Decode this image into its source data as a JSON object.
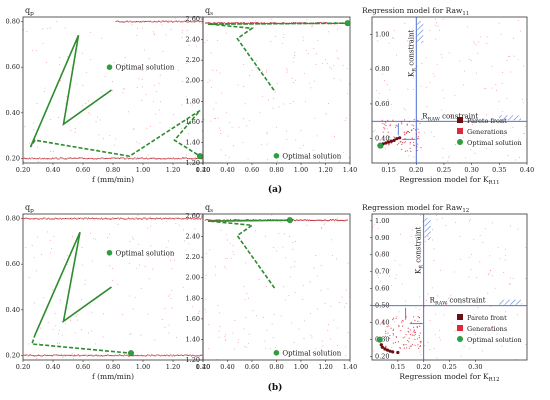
{
  "figure": {
    "captions": [
      "(a)",
      "(b)"
    ]
  },
  "colors": {
    "generations": "#e0283c",
    "pareto": "#6b0f12",
    "optimal": "#2e9e3e",
    "path": "#2e8b2e",
    "constraint": "#3a5fcd",
    "frame": "#333333",
    "hatch": "#5a7fd8",
    "ridge": "#c0303a"
  },
  "chart_data": [
    {
      "type": "scatter",
      "id": "a-qp",
      "ylabel": "q",
      "ylabel_sub": "p",
      "xlabel": "f (mm/min)",
      "xlim": [
        0.2,
        1.4
      ],
      "ylim": [
        0.18,
        0.82
      ],
      "xticks": [
        "0.20",
        "0.40",
        "0.60",
        "0.80",
        "1.00",
        "1.20",
        "1.40"
      ],
      "yticks": [
        "0.20",
        "0.40",
        "0.60",
        "0.80"
      ],
      "ridges": [
        {
          "y": 0.8,
          "x0": 0.82,
          "x1": 1.4
        },
        {
          "y": 0.2,
          "x0": 0.2,
          "x1": 1.4
        }
      ],
      "path": [
        [
          0.25,
          0.25
        ],
        [
          0.57,
          0.74
        ],
        [
          0.47,
          0.35
        ],
        [
          0.79,
          0.5
        ],
        [
          0.47,
          0.35
        ],
        [
          0.57,
          0.74
        ],
        [
          0.25,
          0.25
        ],
        [
          0.28,
          0.28
        ],
        [
          0.91,
          0.21
        ],
        [
          1.38,
          0.41
        ],
        [
          1.21,
          0.28
        ],
        [
          1.38,
          0.21
        ]
      ],
      "optimal": [
        1.38,
        0.21
      ],
      "annotations": [
        {
          "text": "Optimal solution",
          "x": 0.81,
          "y": 0.6
        }
      ]
    },
    {
      "type": "scatter",
      "id": "a-qs",
      "ylabel": "q",
      "ylabel_sub": "s",
      "xlim": [
        0.2,
        1.4
      ],
      "ylim": [
        1.2,
        2.62
      ],
      "xticks": [
        "0.20",
        "0.40",
        "0.60",
        "0.80",
        "1.00",
        "1.20",
        "1.40"
      ],
      "yticks": [
        "1.20",
        "1.40",
        "1.60",
        "1.80",
        "2.00",
        "2.20",
        "2.40",
        "2.60"
      ],
      "ridges": [
        {
          "y": 2.56,
          "x0": 0.22,
          "x1": 1.38
        }
      ],
      "path": [
        [
          0.24,
          2.55
        ],
        [
          1.38,
          2.56
        ],
        [
          0.26,
          2.55
        ],
        [
          0.6,
          2.51
        ],
        [
          0.48,
          2.41
        ],
        [
          0.79,
          1.89
        ]
      ],
      "optimal": [
        1.38,
        2.56
      ],
      "annotations": [
        {
          "text": "Optimal solution",
          "x": 0.84,
          "y": 1.27
        }
      ]
    },
    {
      "type": "scatter",
      "id": "a-reg",
      "title": "Regression model for Raw",
      "title_sub": "11",
      "xlabel": "Regression model for K",
      "xlabel_sub": "R11",
      "xlim": [
        0.12,
        0.4
      ],
      "ylim": [
        0.26,
        1.1
      ],
      "xticks": [
        "0.15",
        "0.20",
        "0.25",
        "0.30",
        "0.35",
        "0.40"
      ],
      "yticks": [
        "0.40",
        "0.60",
        "0.80",
        "1.00"
      ],
      "constraint_x": 0.2,
      "constraint_y": 0.5,
      "kr_label": "K",
      "kr_sub": "R",
      "kr_suffix": " constraint",
      "rraw_label": "R",
      "rraw_sub": "RAW",
      "rraw_suffix": " constraint",
      "pareto": [
        [
          0.135,
          0.36
        ],
        [
          0.14,
          0.37
        ],
        [
          0.145,
          0.375
        ],
        [
          0.15,
          0.38
        ],
        [
          0.155,
          0.385
        ],
        [
          0.16,
          0.39
        ],
        [
          0.165,
          0.4
        ],
        [
          0.17,
          0.405
        ]
      ],
      "optimal": [
        0.135,
        0.36
      ],
      "legend": [
        "Pareto front",
        "Generations",
        "Optimal solution"
      ]
    },
    {
      "type": "scatter",
      "id": "b-qp",
      "ylabel": "q",
      "ylabel_sub": "p",
      "xlabel": "f (mm/min)",
      "xlim": [
        0.2,
        1.4
      ],
      "ylim": [
        0.18,
        0.82
      ],
      "xticks": [
        "0.20",
        "0.40",
        "0.60",
        "0.80",
        "1.00",
        "1.20",
        "1.40"
      ],
      "yticks": [
        "0.20",
        "0.40",
        "0.60",
        "0.80"
      ],
      "ridges": [
        {
          "y": 0.8,
          "x0": 0.2,
          "x1": 1.4
        },
        {
          "y": 0.2,
          "x0": 0.2,
          "x1": 1.4
        }
      ],
      "path": [
        [
          0.28,
          0.29
        ],
        [
          0.58,
          0.74
        ],
        [
          0.47,
          0.35
        ],
        [
          0.79,
          0.5
        ],
        [
          0.47,
          0.35
        ],
        [
          0.58,
          0.74
        ],
        [
          0.28,
          0.29
        ],
        [
          0.26,
          0.25
        ],
        [
          0.92,
          0.21
        ]
      ],
      "optimal": [
        0.92,
        0.21
      ],
      "annotations": [
        {
          "text": "Optimal solution",
          "x": 0.81,
          "y": 0.65
        }
      ]
    },
    {
      "type": "scatter",
      "id": "b-qs",
      "ylabel": "q",
      "ylabel_sub": "s",
      "xlim": [
        0.2,
        1.4
      ],
      "ylim": [
        1.2,
        2.62
      ],
      "xticks": [
        "0.20",
        "0.40",
        "0.60",
        "0.80",
        "1.00",
        "1.20",
        "1.40"
      ],
      "yticks": [
        "1.20",
        "1.40",
        "1.60",
        "1.80",
        "2.00",
        "2.20",
        "2.40",
        "2.60"
      ],
      "ridges": [
        {
          "y": 2.56,
          "x0": 0.22,
          "x1": 1.38
        }
      ],
      "path": [
        [
          0.24,
          2.55
        ],
        [
          0.91,
          2.56
        ],
        [
          0.26,
          2.55
        ],
        [
          0.6,
          2.51
        ],
        [
          0.48,
          2.41
        ],
        [
          0.79,
          1.89
        ]
      ],
      "optimal": [
        0.91,
        2.56
      ],
      "annotations": [
        {
          "text": "Optimal solution",
          "x": 0.84,
          "y": 1.27
        }
      ]
    },
    {
      "type": "scatter",
      "id": "b-reg",
      "title": "Regression model for Raw",
      "title_sub": "12",
      "xlabel": "Regression model for K",
      "xlabel_sub": "R12",
      "xlim": [
        0.1,
        0.4
      ],
      "ylim": [
        0.18,
        1.04
      ],
      "xticks": [
        "0.15",
        "0.20",
        "0.25",
        "0.30"
      ],
      "yticks": [
        "0.20",
        "0.30",
        "0.40",
        "0.50",
        "0.60",
        "0.70",
        "0.80",
        "0.90",
        "1.00"
      ],
      "constraint_x": 0.2,
      "constraint_y": 0.5,
      "kr_label": "K",
      "kr_sub": "R",
      "kr_suffix": " constraint",
      "rraw_label": "R",
      "rraw_sub": "RAW",
      "rraw_suffix": " constraint",
      "pareto": [
        [
          0.115,
          0.3
        ],
        [
          0.118,
          0.27
        ],
        [
          0.12,
          0.255
        ],
        [
          0.125,
          0.245
        ],
        [
          0.13,
          0.238
        ],
        [
          0.135,
          0.232
        ],
        [
          0.14,
          0.228
        ],
        [
          0.15,
          0.224
        ]
      ],
      "optimal": [
        0.115,
        0.3
      ],
      "legend": [
        "Pareto front",
        "Generations",
        "Optimal solution"
      ]
    }
  ]
}
